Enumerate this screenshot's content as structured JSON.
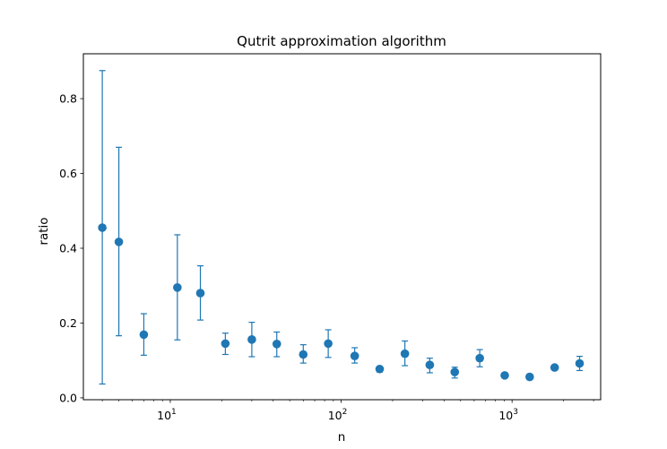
{
  "chart_data": {
    "type": "scatter",
    "title": "Qutrit approximation algorithm",
    "xlabel": "n",
    "ylabel": "ratio",
    "xscale": "log",
    "xlim": [
      3.1,
      3300
    ],
    "ylim": [
      -0.005,
      0.92
    ],
    "grid": false,
    "legend": "none",
    "marker_color": "#1f77b4",
    "yticks": [
      0.0,
      0.2,
      0.4,
      0.6,
      0.8
    ],
    "ytick_labels": [
      "0.0",
      "0.2",
      "0.4",
      "0.6",
      "0.8"
    ],
    "xticks_major": [
      10,
      100,
      1000
    ],
    "xtick_bases": [
      "10",
      "10",
      "10"
    ],
    "xtick_exponents": [
      "1",
      "2",
      "3"
    ],
    "series": [
      {
        "x": [
          4,
          5,
          7,
          11,
          15,
          21,
          30,
          42,
          60,
          84,
          120,
          168,
          236,
          330,
          462,
          647,
          906,
          1268,
          1775,
          2485
        ],
        "y": [
          0.455,
          0.417,
          0.169,
          0.295,
          0.28,
          0.145,
          0.156,
          0.144,
          0.116,
          0.145,
          0.112,
          0.077,
          0.118,
          0.088,
          0.069,
          0.106,
          0.06,
          0.056,
          0.081,
          0.092
        ],
        "err_lower": [
          0.037,
          0.166,
          0.114,
          0.155,
          0.208,
          0.116,
          0.11,
          0.11,
          0.093,
          0.108,
          0.093,
          0.069,
          0.086,
          0.067,
          0.053,
          0.083,
          0.055,
          0.052,
          0.075,
          0.073
        ],
        "err_upper": [
          0.875,
          0.67,
          0.225,
          0.436,
          0.353,
          0.173,
          0.202,
          0.176,
          0.142,
          0.182,
          0.134,
          0.083,
          0.152,
          0.106,
          0.082,
          0.129,
          0.065,
          0.06,
          0.087,
          0.111
        ]
      }
    ]
  }
}
